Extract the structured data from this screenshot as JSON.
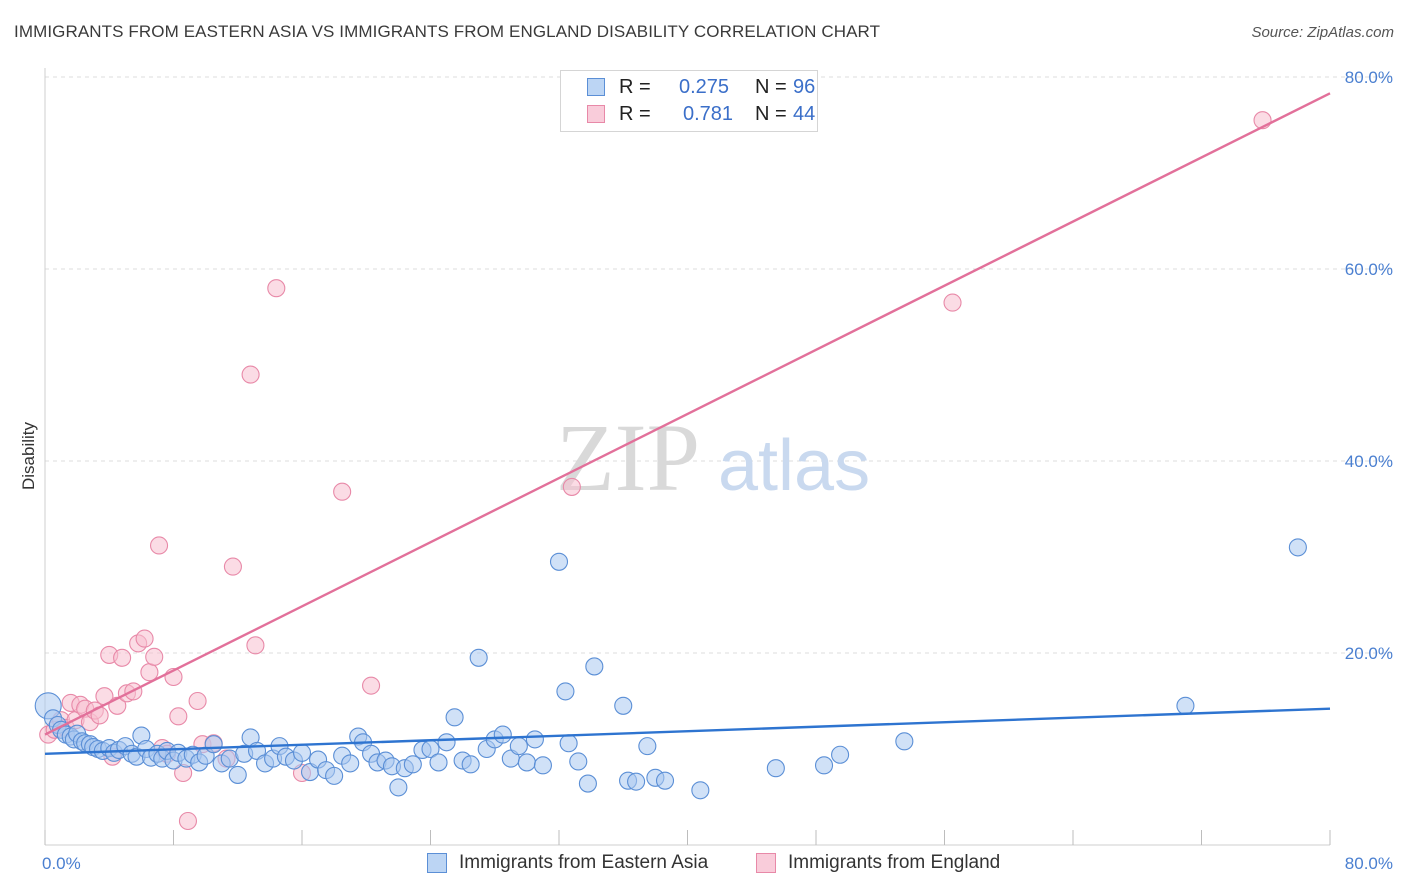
{
  "title": "IMMIGRANTS FROM EASTERN ASIA VS IMMIGRANTS FROM ENGLAND DISABILITY CORRELATION CHART",
  "source": "Source: ZipAtlas.com",
  "watermark": {
    "zip": "ZIP",
    "atlas": "atlas"
  },
  "legend": {
    "rows": [
      {
        "r_label": "R =",
        "r_value": "0.275",
        "n_label": "N =",
        "n_value": "96"
      },
      {
        "r_label": "R =",
        "r_value": "0.781",
        "n_label": "N =",
        "n_value": "44"
      }
    ]
  },
  "bottom_legend": [
    "Immigrants from Eastern Asia",
    "Immigrants from England"
  ],
  "colors": {
    "blue_fill": "#a9c8f0",
    "blue_stroke": "#5b8fd6",
    "blue_line": "#2e74d0",
    "pink_fill": "#f7bfd0",
    "pink_stroke": "#e889a8",
    "pink_line": "#e2709a",
    "grid": "#dcdcdc",
    "tick_text": "#4a7fd0"
  },
  "chart_data": {
    "type": "scatter",
    "xlabel": "",
    "ylabel": "Disability",
    "xlim": [
      0,
      80
    ],
    "ylim": [
      0,
      80
    ],
    "x_tick_labels": [
      "0.0%",
      "80.0%"
    ],
    "y_ticks": [
      20,
      40,
      60,
      80
    ],
    "y_tick_labels": [
      "20.0%",
      "40.0%",
      "60.0%",
      "80.0%"
    ],
    "grid": true,
    "series": [
      {
        "name": "Immigrants from Eastern Asia",
        "color": "#a9c8f0",
        "trend": {
          "x": [
            0,
            80
          ],
          "y": [
            9.5,
            14.2
          ]
        },
        "points": [
          [
            0.2,
            14.5
          ],
          [
            0.5,
            13.2
          ],
          [
            0.8,
            12.5
          ],
          [
            1.0,
            12.0
          ],
          [
            1.3,
            11.5
          ],
          [
            1.6,
            11.3
          ],
          [
            1.8,
            11.0
          ],
          [
            2.0,
            11.6
          ],
          [
            2.3,
            10.8
          ],
          [
            2.5,
            10.6
          ],
          [
            2.8,
            10.5
          ],
          [
            3.0,
            10.2
          ],
          [
            3.3,
            10.0
          ],
          [
            3.6,
            9.8
          ],
          [
            4.0,
            10.1
          ],
          [
            4.3,
            9.6
          ],
          [
            4.6,
            9.9
          ],
          [
            5.0,
            10.3
          ],
          [
            5.4,
            9.5
          ],
          [
            5.7,
            9.2
          ],
          [
            6.0,
            11.4
          ],
          [
            6.3,
            10.0
          ],
          [
            6.6,
            9.1
          ],
          [
            7.0,
            9.5
          ],
          [
            7.3,
            9.0
          ],
          [
            7.6,
            9.8
          ],
          [
            8.0,
            8.8
          ],
          [
            8.3,
            9.6
          ],
          [
            8.8,
            9.0
          ],
          [
            9.2,
            9.4
          ],
          [
            9.6,
            8.6
          ],
          [
            10.0,
            9.3
          ],
          [
            10.5,
            10.5
          ],
          [
            11.0,
            8.5
          ],
          [
            11.5,
            9.0
          ],
          [
            12.0,
            7.3
          ],
          [
            12.4,
            9.5
          ],
          [
            12.8,
            11.2
          ],
          [
            13.2,
            9.8
          ],
          [
            13.7,
            8.5
          ],
          [
            14.2,
            9.0
          ],
          [
            14.6,
            10.3
          ],
          [
            15.0,
            9.2
          ],
          [
            15.5,
            8.8
          ],
          [
            16.0,
            9.6
          ],
          [
            16.5,
            7.6
          ],
          [
            17.0,
            8.9
          ],
          [
            17.5,
            7.8
          ],
          [
            18.0,
            7.2
          ],
          [
            18.5,
            9.3
          ],
          [
            19.0,
            8.5
          ],
          [
            19.5,
            11.3
          ],
          [
            19.8,
            10.7
          ],
          [
            20.3,
            9.5
          ],
          [
            20.7,
            8.6
          ],
          [
            21.2,
            8.8
          ],
          [
            21.6,
            8.2
          ],
          [
            22.0,
            6.0
          ],
          [
            22.4,
            8.0
          ],
          [
            22.9,
            8.4
          ],
          [
            23.5,
            9.9
          ],
          [
            24.0,
            10.0
          ],
          [
            24.5,
            8.6
          ],
          [
            25.0,
            10.7
          ],
          [
            25.5,
            13.3
          ],
          [
            26.0,
            8.8
          ],
          [
            26.5,
            8.4
          ],
          [
            27.0,
            19.5
          ],
          [
            27.5,
            10.0
          ],
          [
            28.0,
            11.0
          ],
          [
            28.5,
            11.5
          ],
          [
            29.0,
            9.0
          ],
          [
            29.5,
            10.3
          ],
          [
            30.0,
            8.6
          ],
          [
            30.5,
            11.0
          ],
          [
            31.0,
            8.3
          ],
          [
            32.0,
            29.5
          ],
          [
            32.4,
            16.0
          ],
          [
            32.6,
            10.6
          ],
          [
            33.2,
            8.7
          ],
          [
            33.8,
            6.4
          ],
          [
            34.2,
            18.6
          ],
          [
            36.0,
            14.5
          ],
          [
            36.3,
            6.7
          ],
          [
            36.8,
            6.6
          ],
          [
            37.5,
            10.3
          ],
          [
            38.0,
            7.0
          ],
          [
            38.6,
            6.7
          ],
          [
            40.8,
            5.7
          ],
          [
            45.5,
            8.0
          ],
          [
            48.5,
            8.3
          ],
          [
            49.5,
            9.4
          ],
          [
            53.5,
            10.8
          ],
          [
            71.0,
            14.5
          ],
          [
            78.0,
            31.0
          ]
        ]
      },
      {
        "name": "Immigrants from England",
        "color": "#f7bfd0",
        "trend": {
          "x": [
            0,
            80
          ],
          "y": [
            11.5,
            78.3
          ]
        },
        "points": [
          [
            0.2,
            11.5
          ],
          [
            0.6,
            12.0
          ],
          [
            1.0,
            13.0
          ],
          [
            1.3,
            12.2
          ],
          [
            1.6,
            14.8
          ],
          [
            1.9,
            13.0
          ],
          [
            2.2,
            14.6
          ],
          [
            2.5,
            14.2
          ],
          [
            2.8,
            12.8
          ],
          [
            3.1,
            14.0
          ],
          [
            3.4,
            13.5
          ],
          [
            3.7,
            15.5
          ],
          [
            4.0,
            19.8
          ],
          [
            4.2,
            9.2
          ],
          [
            4.5,
            14.5
          ],
          [
            4.8,
            19.5
          ],
          [
            5.1,
            15.8
          ],
          [
            5.5,
            16.0
          ],
          [
            5.8,
            21.0
          ],
          [
            6.2,
            21.5
          ],
          [
            6.5,
            18.0
          ],
          [
            6.8,
            19.6
          ],
          [
            7.1,
            31.2
          ],
          [
            7.3,
            10.1
          ],
          [
            7.6,
            9.5
          ],
          [
            8.0,
            17.5
          ],
          [
            8.3,
            13.4
          ],
          [
            8.6,
            7.5
          ],
          [
            8.9,
            2.5
          ],
          [
            9.5,
            15.0
          ],
          [
            9.8,
            10.5
          ],
          [
            10.5,
            10.6
          ],
          [
            11.3,
            9.0
          ],
          [
            11.7,
            29.0
          ],
          [
            12.8,
            49.0
          ],
          [
            13.1,
            20.8
          ],
          [
            14.4,
            58.0
          ],
          [
            16.0,
            7.5
          ],
          [
            18.5,
            36.8
          ],
          [
            20.3,
            16.6
          ],
          [
            32.8,
            37.3
          ],
          [
            56.5,
            56.5
          ],
          [
            75.8,
            75.5
          ]
        ]
      }
    ]
  }
}
